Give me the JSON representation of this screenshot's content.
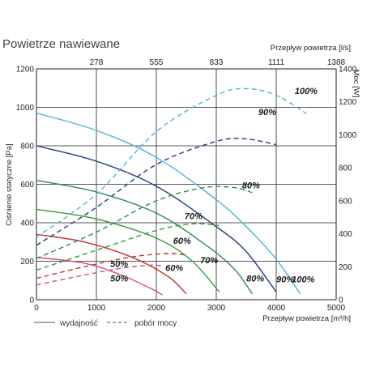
{
  "chart_data": {
    "type": "line",
    "title": "Powietrze nawiewane",
    "xlabel": "Przepływ powietrza [m³/h]",
    "ylabel": "Ciśnienie statyczne [Pa]",
    "x2label": "Przepływ powietrza [l/s]",
    "y2label": "Moc [W]",
    "xlim": [
      0,
      5000
    ],
    "ylim": [
      0,
      1200
    ],
    "y2lim": [
      0,
      1400
    ],
    "xticks": [
      "0",
      "1000",
      "2000",
      "3000",
      "4000",
      "5000"
    ],
    "yticks": [
      "0",
      "200",
      "400",
      "600",
      "800",
      "1000",
      "1200"
    ],
    "x2ticks": [
      "278",
      "555",
      "833",
      "1111",
      "1388"
    ],
    "y2ticks": [
      "0",
      "200",
      "400",
      "600",
      "800",
      "1000",
      "1200",
      "1400"
    ],
    "grid": true,
    "legend": {
      "solid": "wydajność",
      "dashed": "pobór mocy"
    },
    "series": [
      {
        "name": "100%",
        "kind": "wydajność",
        "color": "#4fb3d3",
        "x": [
          0,
          1000,
          2000,
          3000,
          3500,
          4000,
          4400
        ],
        "y": [
          970,
          880,
          740,
          520,
          380,
          210,
          30
        ]
      },
      {
        "name": "90%",
        "kind": "wydajność",
        "color": "#1f3f7a",
        "x": [
          0,
          1000,
          2000,
          3000,
          3500,
          4000
        ],
        "y": [
          800,
          720,
          590,
          380,
          250,
          40
        ]
      },
      {
        "name": "80%",
        "kind": "wydajność",
        "color": "#2e8b57",
        "x": [
          0,
          1000,
          2000,
          2800,
          3300,
          3600
        ],
        "y": [
          620,
          560,
          450,
          290,
          160,
          30
        ]
      },
      {
        "name": "70%",
        "kind": "wydajność",
        "color": "#3a9a3a",
        "x": [
          0,
          1000,
          2000,
          2600,
          3050
        ],
        "y": [
          470,
          420,
          320,
          200,
          40
        ]
      },
      {
        "name": "60%",
        "kind": "wydajność",
        "color": "#c0392b",
        "x": [
          0,
          800,
          1600,
          2200,
          2500
        ],
        "y": [
          340,
          300,
          220,
          120,
          30
        ]
      },
      {
        "name": "50%",
        "kind": "wydajność",
        "color": "#d24d8a",
        "x": [
          0,
          800,
          1400,
          1900,
          2100
        ],
        "y": [
          220,
          190,
          130,
          60,
          25
        ]
      },
      {
        "name": "100%",
        "kind": "pobór mocy",
        "color": "#4fb3d3",
        "x": [
          0,
          1000,
          2000,
          3000,
          3500,
          4000,
          4500
        ],
        "y": [
          380,
          640,
          1020,
          1240,
          1280,
          1240,
          1130
        ]
      },
      {
        "name": "90%",
        "kind": "pobór mocy",
        "color": "#1f3f7a",
        "x": [
          0,
          1000,
          2000,
          3000,
          3500,
          4000
        ],
        "y": [
          330,
          560,
          820,
          960,
          975,
          940
        ]
      },
      {
        "name": "80%",
        "kind": "pobór mocy",
        "color": "#2e8b57",
        "x": [
          0,
          1000,
          2000,
          2800,
          3300,
          3600
        ],
        "y": [
          250,
          410,
          600,
          680,
          680,
          650
        ]
      },
      {
        "name": "70%",
        "kind": "pobór mocy",
        "color": "#3a9a3a",
        "x": [
          0,
          1000,
          2000,
          2600,
          3050
        ],
        "y": [
          180,
          300,
          420,
          460,
          450
        ]
      },
      {
        "name": "60%",
        "kind": "pobór mocy",
        "color": "#c0392b",
        "x": [
          0,
          800,
          1600,
          2200,
          2500
        ],
        "y": [
          130,
          200,
          260,
          280,
          270
        ]
      },
      {
        "name": "50%",
        "kind": "pobór mocy",
        "color": "#d24d8a",
        "x": [
          0,
          800,
          1400,
          1900,
          2100
        ],
        "y": [
          90,
          150,
          190,
          210,
          205
        ]
      }
    ],
    "labels": [
      {
        "text": "100%",
        "x": 4450,
        "y": 90
      },
      {
        "text": "90%",
        "x": 4150,
        "y": 90
      },
      {
        "text": "80%",
        "x": 3650,
        "y": 95
      },
      {
        "text": "70%",
        "x": 2880,
        "y": 190
      },
      {
        "text": "60%",
        "x": 2300,
        "y": 150
      },
      {
        "text": "50%",
        "x": 1380,
        "y": 95
      },
      {
        "text": "50%",
        "x": 1380,
        "y": 170
      },
      {
        "text": "60%",
        "x": 2430,
        "y": 290
      },
      {
        "text": "70%",
        "x": 2620,
        "y": 420
      },
      {
        "text": "80%",
        "x": 3580,
        "y": 580
      },
      {
        "text": "90%",
        "x": 3850,
        "y": 960
      },
      {
        "text": "100%",
        "x": 4500,
        "y": 1070
      }
    ]
  }
}
